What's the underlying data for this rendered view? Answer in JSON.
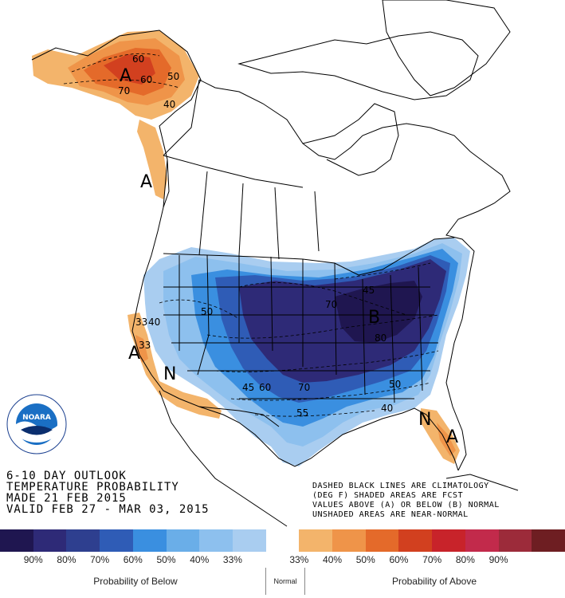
{
  "title_lines": [
    "6-10 DAY OUTLOOK",
    "TEMPERATURE PROBABILITY",
    "MADE   21 FEB 2015",
    "VALID  FEB 27 - MAR 03, 2015"
  ],
  "notes_lines": [
    "DASHED BLACK LINES ARE CLIMATOLOGY",
    "(DEG F) SHADED AREAS ARE FCST",
    "VALUES ABOVE (A) OR BELOW (B) NORMAL",
    "UNSHADED AREAS ARE NEAR-NORMAL"
  ],
  "logo": {
    "text": "NOARA",
    "ring_text": "NATIONAL OCEANIC AND ATMOSPHERIC ADMINISTRATION · U.S. DEPARTMENT OF COMMERCE"
  },
  "region_letters": [
    {
      "id": "alaska",
      "text": "A"
    },
    {
      "id": "pnw",
      "text": "A"
    },
    {
      "id": "california",
      "text": "A"
    },
    {
      "id": "east",
      "text": "B"
    },
    {
      "id": "sw",
      "text": "N"
    },
    {
      "id": "florida-n",
      "text": "N"
    },
    {
      "id": "florida-a",
      "text": "A"
    }
  ],
  "isotherm_labels": [
    {
      "id": "ak-60a",
      "text": "60"
    },
    {
      "id": "ak-60b",
      "text": "60"
    },
    {
      "id": "ak-50",
      "text": "50"
    },
    {
      "id": "ak-40",
      "text": "40"
    },
    {
      "id": "ak-70",
      "text": "70"
    },
    {
      "id": "ca-33",
      "text": "33"
    },
    {
      "id": "ca-40",
      "text": "40"
    },
    {
      "id": "ca-33b",
      "text": "33"
    },
    {
      "id": "w-50",
      "text": "50"
    },
    {
      "id": "gl-70",
      "text": "70"
    },
    {
      "id": "ne-45",
      "text": "45"
    },
    {
      "id": "e-80",
      "text": "80"
    },
    {
      "id": "s-45",
      "text": "45"
    },
    {
      "id": "s-60",
      "text": "60"
    },
    {
      "id": "s-70",
      "text": "70"
    },
    {
      "id": "se-50",
      "text": "50"
    },
    {
      "id": "se-40",
      "text": "40"
    },
    {
      "id": "tx-55",
      "text": "55"
    }
  ],
  "legend": {
    "colors": [
      "#1f1650",
      "#2e2a77",
      "#2e3f8f",
      "#2f5cb6",
      "#3a8fe0",
      "#6aaee8",
      "#8dc0ee",
      "#a9cdf0",
      "#ffffff",
      "#f3b46b",
      "#ef9449",
      "#e46a2a",
      "#d2401f",
      "#c8232a",
      "#c22a4b",
      "#9c2b3a",
      "#6e1e22"
    ],
    "labels": [
      "90%",
      "80%",
      "70%",
      "60%",
      "50%",
      "40%",
      "33%",
      "33%",
      "40%",
      "50%",
      "60%",
      "70%",
      "80%",
      "90%"
    ],
    "below_caption": "Probability of Below",
    "normal_caption": "Normal",
    "above_caption": "Probability of Above"
  }
}
